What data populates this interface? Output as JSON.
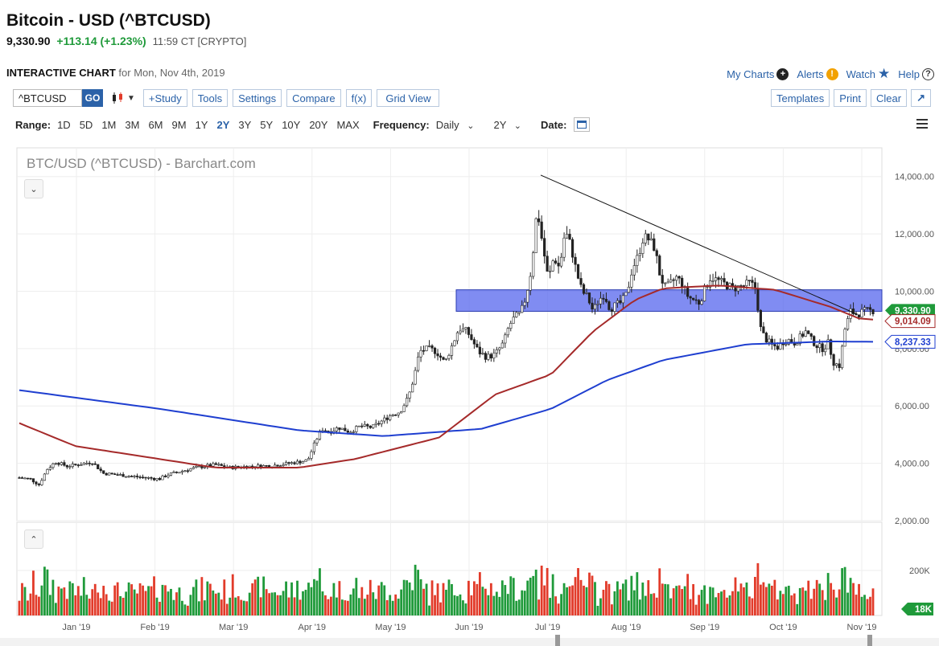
{
  "header": {
    "title": "Bitcoin - USD (^BTCUSD)",
    "price": "9,330.90",
    "change": "+113.14 (+1.23%)",
    "time": "11:59 CT [CRYPTO]",
    "interactive_label": "INTERACTIVE CHART",
    "interactive_date": "for Mon, Nov 4th, 2019"
  },
  "toplinks": {
    "my_charts": "My Charts",
    "alerts": "Alerts",
    "watch": "Watch",
    "help": "Help"
  },
  "toolbar": {
    "symbol_value": "^BTCUSD",
    "go": "GO",
    "study": "+Study",
    "tools": "Tools",
    "settings": "Settings",
    "compare": "Compare",
    "fx": "f(x)",
    "grid_view": "Grid View",
    "templates": "Templates",
    "print": "Print",
    "clear": "Clear"
  },
  "rangebar": {
    "range_label": "Range:",
    "ranges": [
      "1D",
      "5D",
      "1M",
      "3M",
      "6M",
      "9M",
      "1Y",
      "2Y",
      "3Y",
      "5Y",
      "10Y",
      "20Y",
      "MAX"
    ],
    "active_range": "2Y",
    "frequency_label": "Frequency:",
    "frequency_value": "Daily",
    "period_value": "2Y",
    "date_label": "Date:"
  },
  "chart_data": {
    "type": "candlestick",
    "title": "BTC/USD (^BTCUSD) - Barchart.com",
    "x_tick_labels": [
      "Jan '19",
      "Feb '19",
      "Mar '19",
      "Apr '19",
      "May '19",
      "Jun '19",
      "Jul '19",
      "Aug '19",
      "Sep '19",
      "Oct '19",
      "Nov '19"
    ],
    "y_tick_labels": [
      "2,000.00",
      "4,000.00",
      "6,000.00",
      "8,000.00",
      "10,000.00",
      "12,000.00",
      "14,000.00"
    ],
    "ylim": [
      2000,
      15000
    ],
    "volume_tick_label": "200K",
    "last_price_label": "9,330.90",
    "ma_short_label": "9,014.09",
    "ma_long_label": "8,237.33",
    "volume_last_label": "18K",
    "colors": {
      "up": "#1f9a3a",
      "down": "#e23b2a",
      "ma_short": "#a52a2a",
      "ma_long": "#1f3fd0",
      "zone": "#5566ee",
      "price_tag": "#1f9a3a"
    },
    "close_path": [
      [
        0,
        3500
      ],
      [
        8,
        3450
      ],
      [
        14,
        3250
      ],
      [
        20,
        3800
      ],
      [
        26,
        4050
      ],
      [
        34,
        3900
      ],
      [
        42,
        3950
      ],
      [
        52,
        4050
      ],
      [
        60,
        3650
      ],
      [
        70,
        3600
      ],
      [
        80,
        3550
      ],
      [
        90,
        3500
      ],
      [
        100,
        3450
      ],
      [
        106,
        3600
      ],
      [
        114,
        3700
      ],
      [
        126,
        3850
      ],
      [
        140,
        3950
      ],
      [
        150,
        3850
      ],
      [
        160,
        3880
      ],
      [
        170,
        3900
      ],
      [
        180,
        3920
      ],
      [
        190,
        3980
      ],
      [
        200,
        4050
      ],
      [
        206,
        4100
      ],
      [
        212,
        4800
      ],
      [
        216,
        5200
      ],
      [
        222,
        5100
      ],
      [
        228,
        5250
      ],
      [
        236,
        5100
      ],
      [
        244,
        5300
      ],
      [
        252,
        5250
      ],
      [
        260,
        5500
      ],
      [
        266,
        5700
      ],
      [
        272,
        5800
      ],
      [
        278,
        6300
      ],
      [
        282,
        7000
      ],
      [
        286,
        7900
      ],
      [
        292,
        8000
      ],
      [
        298,
        7900
      ],
      [
        304,
        7500
      ],
      [
        310,
        8200
      ],
      [
        314,
        8700
      ],
      [
        320,
        8600
      ],
      [
        328,
        7900
      ],
      [
        334,
        7700
      ],
      [
        340,
        7800
      ],
      [
        346,
        8200
      ],
      [
        350,
        8800
      ],
      [
        354,
        9100
      ],
      [
        358,
        9200
      ],
      [
        362,
        9800
      ],
      [
        366,
        10800
      ],
      [
        370,
        12900
      ],
      [
        374,
        11600
      ],
      [
        378,
        10400
      ],
      [
        382,
        11200
      ],
      [
        386,
        10800
      ],
      [
        390,
        12100
      ],
      [
        394,
        11600
      ],
      [
        398,
        10700
      ],
      [
        402,
        10000
      ],
      [
        406,
        9800
      ],
      [
        410,
        9300
      ],
      [
        414,
        9700
      ],
      [
        418,
        9900
      ],
      [
        422,
        9400
      ],
      [
        426,
        9500
      ],
      [
        430,
        9600
      ],
      [
        434,
        9900
      ],
      [
        438,
        10800
      ],
      [
        442,
        11200
      ],
      [
        446,
        11900
      ],
      [
        450,
        11800
      ],
      [
        454,
        11500
      ],
      [
        458,
        10500
      ],
      [
        462,
        10100
      ],
      [
        466,
        10300
      ],
      [
        470,
        10500
      ],
      [
        474,
        10200
      ],
      [
        478,
        9800
      ],
      [
        482,
        9700
      ],
      [
        486,
        9600
      ],
      [
        490,
        10100
      ],
      [
        494,
        10500
      ],
      [
        498,
        10400
      ],
      [
        502,
        10300
      ],
      [
        506,
        10200
      ],
      [
        510,
        10100
      ],
      [
        514,
        10150
      ],
      [
        518,
        10200
      ],
      [
        522,
        10300
      ],
      [
        526,
        10100
      ],
      [
        530,
        8600
      ],
      [
        534,
        8300
      ],
      [
        538,
        8100
      ],
      [
        542,
        8050
      ],
      [
        546,
        8250
      ],
      [
        550,
        8300
      ],
      [
        554,
        8200
      ],
      [
        558,
        8400
      ],
      [
        562,
        8600
      ],
      [
        566,
        8300
      ],
      [
        570,
        8100
      ],
      [
        574,
        8000
      ],
      [
        578,
        8200
      ],
      [
        582,
        7500
      ],
      [
        586,
        7400
      ],
      [
        590,
        8700
      ],
      [
        594,
        9300
      ],
      [
        598,
        9200
      ],
      [
        604,
        9300
      ],
      [
        610,
        9330
      ]
    ],
    "ma_short": [
      [
        0,
        5400
      ],
      [
        40,
        4600
      ],
      [
        100,
        4150
      ],
      [
        140,
        3850
      ],
      [
        200,
        3850
      ],
      [
        240,
        4150
      ],
      [
        300,
        4900
      ],
      [
        340,
        6400
      ],
      [
        380,
        7100
      ],
      [
        410,
        8600
      ],
      [
        440,
        9700
      ],
      [
        460,
        10100
      ],
      [
        500,
        10200
      ],
      [
        540,
        10050
      ],
      [
        580,
        9450
      ],
      [
        600,
        9050
      ],
      [
        610,
        9014
      ]
    ],
    "ma_long": [
      [
        0,
        6550
      ],
      [
        100,
        5900
      ],
      [
        200,
        5150
      ],
      [
        260,
        4950
      ],
      [
        330,
        5200
      ],
      [
        380,
        5900
      ],
      [
        420,
        6900
      ],
      [
        460,
        7600
      ],
      [
        520,
        8150
      ],
      [
        580,
        8250
      ],
      [
        610,
        8237
      ]
    ],
    "volume_ticks": []
  }
}
